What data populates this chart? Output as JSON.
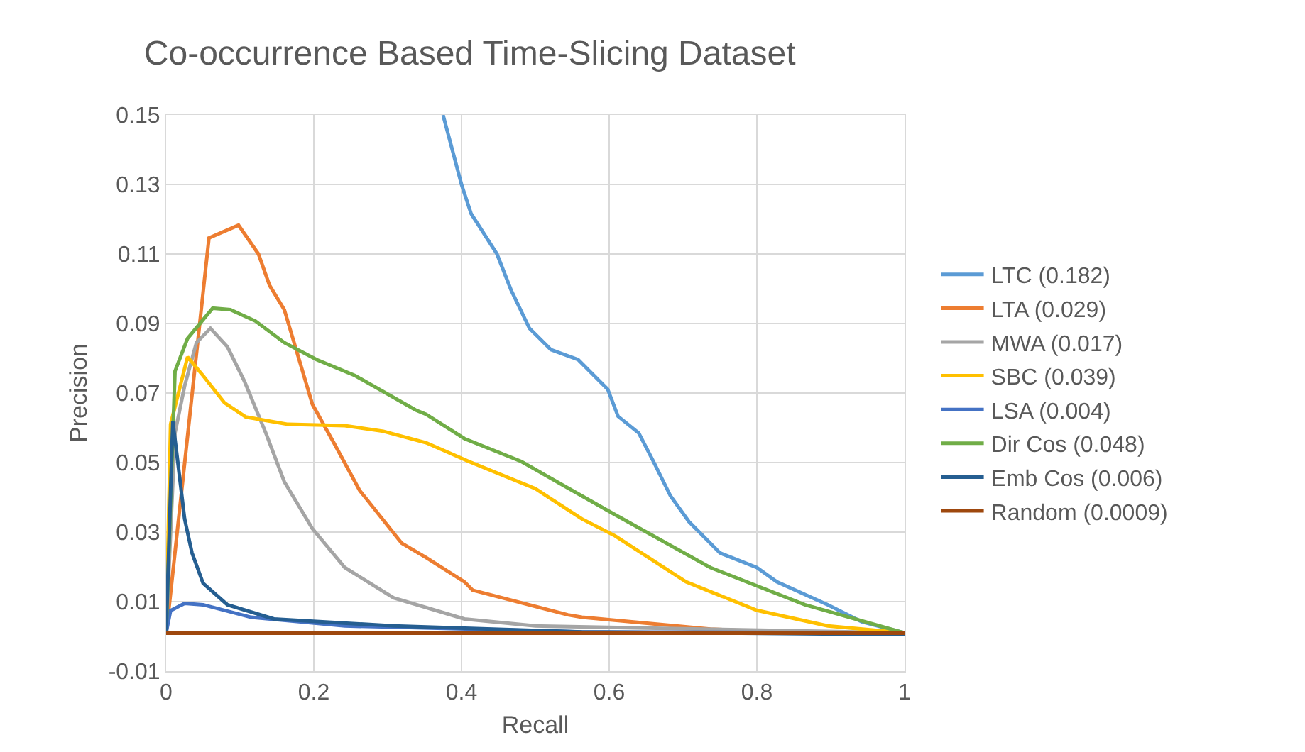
{
  "chart_data": {
    "type": "line",
    "title": "Co-occurrence Based Time-Slicing Dataset",
    "xlabel": "Recall",
    "ylabel": "Precision",
    "xlim": [
      0,
      1
    ],
    "xticks": [
      0,
      0.2,
      0.4,
      0.6,
      0.8,
      1
    ],
    "ylim": [
      -0.01,
      0.15
    ],
    "yticks": [
      -0.01,
      0.01,
      0.03,
      0.05,
      0.07,
      0.09,
      0.11,
      0.13,
      0.15
    ],
    "grid": true,
    "legend": "right",
    "marker": "none",
    "line_style": "solid",
    "series": [
      {
        "name": "LTC (0.182)",
        "color": "#5b9bd5",
        "x": [
          0.375,
          0.4,
          0.413,
          0.448,
          0.467,
          0.492,
          0.521,
          0.558,
          0.598,
          0.612,
          0.64,
          0.66,
          0.683,
          0.708,
          0.75,
          0.8,
          0.827,
          0.896,
          0.942,
          1.0
        ],
        "values": [
          0.15,
          0.13,
          0.1216,
          0.11,
          0.0997,
          0.0886,
          0.0825,
          0.0796,
          0.0711,
          0.0633,
          0.0585,
          0.0503,
          0.0404,
          0.033,
          0.024,
          0.0198,
          0.0157,
          0.0091,
          0.0042,
          0.001
        ]
      },
      {
        "name": "LTA (0.029)",
        "color": "#ed7d31",
        "x": [
          0,
          0.058,
          0.098,
          0.125,
          0.14,
          0.16,
          0.198,
          0.227,
          0.262,
          0.319,
          0.352,
          0.404,
          0.415,
          0.544,
          0.563,
          0.737,
          0.827,
          1.0
        ],
        "values": [
          0.0006,
          0.1146,
          0.1183,
          0.11,
          0.101,
          0.094,
          0.0668,
          0.0557,
          0.042,
          0.0268,
          0.0227,
          0.0157,
          0.0133,
          0.0062,
          0.0055,
          0.0021,
          0.0012,
          0.0009
        ]
      },
      {
        "name": "MWA (0.017)",
        "color": "#a5a5a5",
        "x": [
          0,
          0.012,
          0.025,
          0.041,
          0.06,
          0.083,
          0.106,
          0.135,
          0.16,
          0.198,
          0.242,
          0.308,
          0.404,
          0.5,
          1.0
        ],
        "values": [
          0.001,
          0.0585,
          0.072,
          0.0845,
          0.0886,
          0.0833,
          0.0734,
          0.0585,
          0.0445,
          0.031,
          0.0198,
          0.0111,
          0.005,
          0.003,
          0.001
        ]
      },
      {
        "name": "SBC (0.039)",
        "color": "#ffc000",
        "x": [
          0,
          0.006,
          0.029,
          0.05,
          0.079,
          0.108,
          0.165,
          0.242,
          0.294,
          0.352,
          0.41,
          0.5,
          0.563,
          0.608,
          0.704,
          0.8,
          0.896,
          1.0
        ],
        "values": [
          0.001,
          0.061,
          0.0804,
          0.075,
          0.0672,
          0.0631,
          0.061,
          0.0606,
          0.059,
          0.0557,
          0.0503,
          0.0425,
          0.0338,
          0.0289,
          0.0157,
          0.0075,
          0.003,
          0.001
        ]
      },
      {
        "name": "LSA (0.004)",
        "color": "#4472c4",
        "x": [
          0,
          0.006,
          0.025,
          0.05,
          0.115,
          0.242,
          0.563,
          1.0
        ],
        "values": [
          0.001,
          0.0074,
          0.0095,
          0.0091,
          0.0055,
          0.003,
          0.0013,
          0.001
        ]
      },
      {
        "name": "Dir Cos (0.048)",
        "color": "#70ad47",
        "x": [
          0,
          0.012,
          0.029,
          0.063,
          0.087,
          0.121,
          0.16,
          0.204,
          0.256,
          0.338,
          0.352,
          0.404,
          0.481,
          0.563,
          0.608,
          0.737,
          0.865,
          1.0
        ],
        "values": [
          0.001,
          0.0763,
          0.0857,
          0.0944,
          0.094,
          0.0907,
          0.0845,
          0.0796,
          0.075,
          0.0651,
          0.0639,
          0.0569,
          0.0503,
          0.0404,
          0.035,
          0.0198,
          0.0091,
          0.001
        ]
      },
      {
        "name": "Emb Cos (0.006)",
        "color": "#255e91",
        "x": [
          0,
          0.009,
          0.015,
          0.025,
          0.035,
          0.05,
          0.083,
          0.146,
          0.308,
          0.563,
          1.0
        ],
        "values": [
          0.001,
          0.0618,
          0.0515,
          0.0338,
          0.024,
          0.0153,
          0.0091,
          0.005,
          0.003,
          0.0013,
          0.0005
        ]
      },
      {
        "name": "Random (0.0009)",
        "color": "#9e480e",
        "x": [
          0,
          1
        ],
        "values": [
          0.0009,
          0.0009
        ]
      }
    ]
  }
}
